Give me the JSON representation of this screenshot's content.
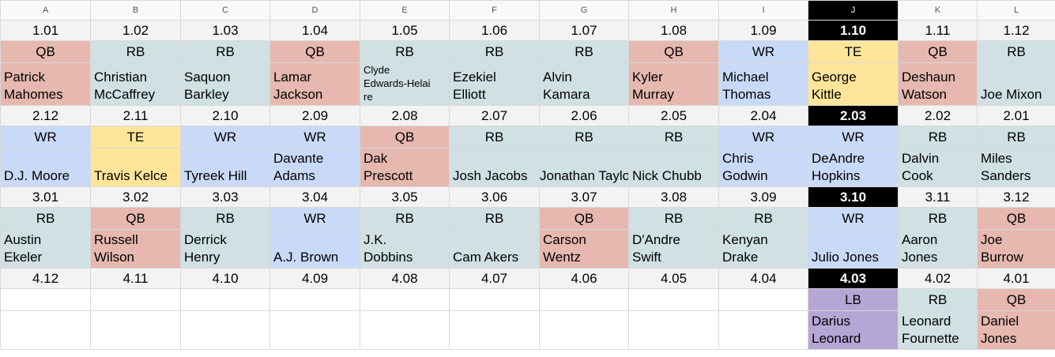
{
  "columns": [
    "A",
    "B",
    "C",
    "D",
    "E",
    "F",
    "G",
    "H",
    "I",
    "J",
    "K",
    "L"
  ],
  "selected_column": "J",
  "colors": {
    "QB": "#e6b8af",
    "RB": "#d0e0e3",
    "WR": "#c9daf8",
    "TE": "#ffe599",
    "LB": "#b4a7d6",
    "highlight": "#000000"
  },
  "rounds": [
    {
      "picks": [
        "1.01",
        "1.02",
        "1.03",
        "1.04",
        "1.05",
        "1.06",
        "1.07",
        "1.08",
        "1.09",
        "1.10",
        "1.11",
        "1.12"
      ],
      "positions": [
        "QB",
        "RB",
        "RB",
        "QB",
        "RB",
        "RB",
        "RB",
        "QB",
        "WR",
        "TE",
        "QB",
        "RB"
      ],
      "players": [
        "Patrick\nMahomes",
        "Christian\nMcCaffrey",
        "Saquon\nBarkley",
        "Lamar\nJackson",
        "Clyde\nEdwards-Helai\nre",
        "Ezekiel\nElliott",
        "Alvin\nKamara",
        "Kyler\nMurray",
        "Michael\nThomas",
        "George\nKittle",
        "Deshaun\nWatson",
        "Joe Mixon"
      ]
    },
    {
      "picks": [
        "2.12",
        "2.11",
        "2.10",
        "2.09",
        "2.08",
        "2.07",
        "2.06",
        "2.05",
        "2.04",
        "2.03",
        "2.02",
        "2.01"
      ],
      "positions": [
        "WR",
        "TE",
        "WR",
        "WR",
        "QB",
        "RB",
        "RB",
        "RB",
        "WR",
        "WR",
        "RB",
        "RB"
      ],
      "players": [
        "D.J. Moore",
        "Travis Kelce",
        "Tyreek Hill",
        "Davante\nAdams",
        "Dak\nPrescott",
        "Josh Jacobs",
        "Jonathan Taylor",
        "Nick Chubb",
        "Chris\nGodwin",
        "DeAndre\nHopkins",
        "Dalvin\nCook",
        "Miles\nSanders"
      ]
    },
    {
      "picks": [
        "3.01",
        "3.02",
        "3.03",
        "3.04",
        "3.05",
        "3.06",
        "3.07",
        "3.08",
        "3.09",
        "3.10",
        "3.11",
        "3.12"
      ],
      "positions": [
        "RB",
        "QB",
        "RB",
        "WR",
        "RB",
        "RB",
        "QB",
        "RB",
        "RB",
        "WR",
        "RB",
        "QB"
      ],
      "players": [
        "Austin\nEkeler",
        "Russell\nWilson",
        "Derrick\nHenry",
        "A.J. Brown",
        "J.K.\nDobbins",
        "Cam Akers",
        "Carson\nWentz",
        "D'Andre\nSwift",
        "Kenyan\nDrake",
        "Julio Jones",
        "Aaron\nJones",
        "Joe\nBurrow"
      ]
    },
    {
      "picks": [
        "4.12",
        "4.11",
        "4.10",
        "4.09",
        "4.08",
        "4.07",
        "4.06",
        "4.05",
        "4.04",
        "4.03",
        "4.02",
        "4.01"
      ],
      "positions": [
        "",
        "",
        "",
        "",
        "",
        "",
        "",
        "",
        "",
        "LB",
        "RB",
        "QB"
      ],
      "players": [
        "",
        "",
        "",
        "",
        "",
        "",
        "",
        "",
        "",
        "Darius\nLeonard",
        "Leonard\nFournette",
        "Daniel\nJones"
      ]
    }
  ]
}
